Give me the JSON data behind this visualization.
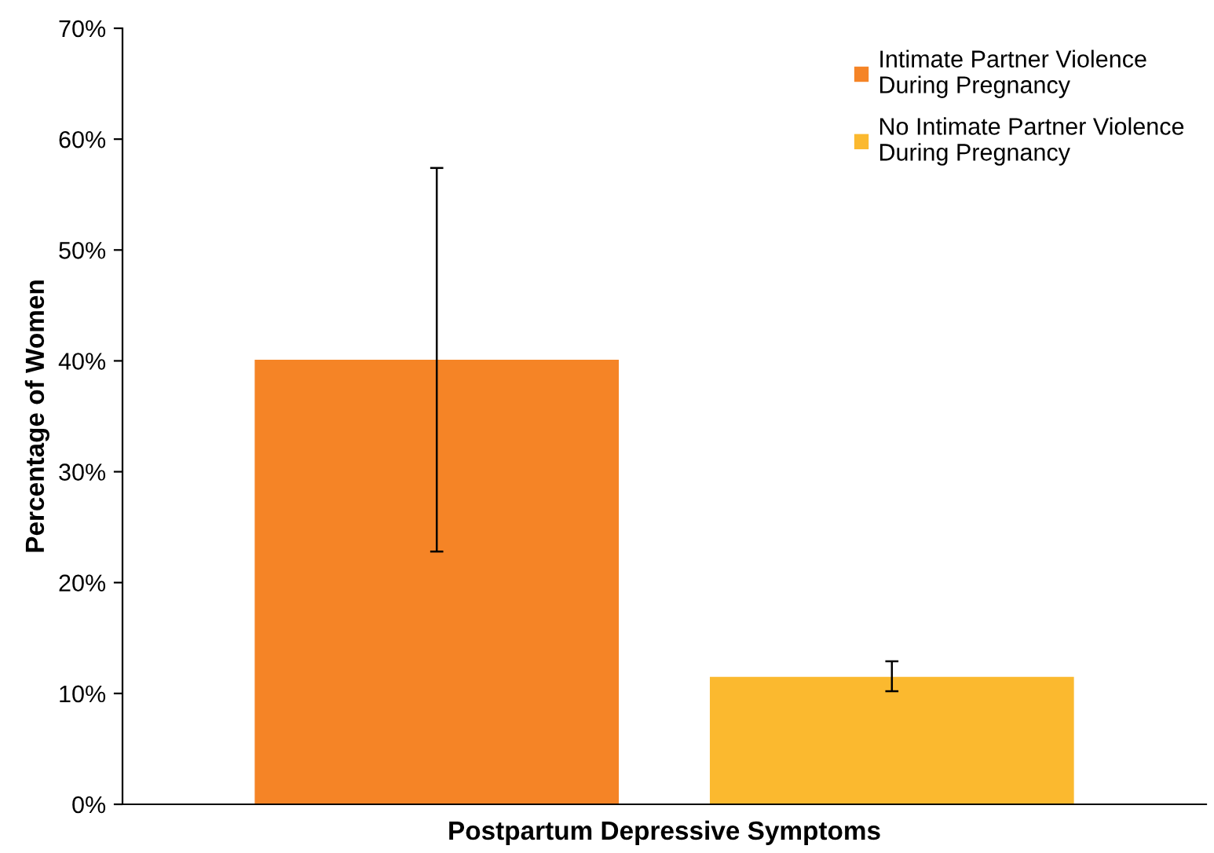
{
  "chart_data": {
    "type": "bar",
    "xlabel": "Postpartum Depressive Symptoms",
    "ylabel": "Percentage of Women",
    "categories": [
      null
    ],
    "series": [
      {
        "name": "Intimate Partner Violence During Pregnancy",
        "color": "#f58426",
        "values": [
          40.1
        ],
        "errors": [
          [
            22.8,
            57.4
          ]
        ]
      },
      {
        "name": "No Intimate Partner Violence During Pregnancy",
        "color": "#fbb92f",
        "values": [
          11.5
        ],
        "errors": [
          [
            10.2,
            12.9
          ]
        ]
      }
    ],
    "ylim": [
      0,
      70
    ],
    "yticks": [
      {
        "value": 0,
        "label": "0%"
      },
      {
        "value": 10,
        "label": "10%"
      },
      {
        "value": 20,
        "label": "20%"
      },
      {
        "value": 30,
        "label": "30%"
      },
      {
        "value": 40,
        "label": "40%"
      },
      {
        "value": 50,
        "label": "50%"
      },
      {
        "value": 60,
        "label": "60%"
      },
      {
        "value": 70,
        "label": "70%"
      }
    ],
    "legend": "top right",
    "grid": false
  }
}
